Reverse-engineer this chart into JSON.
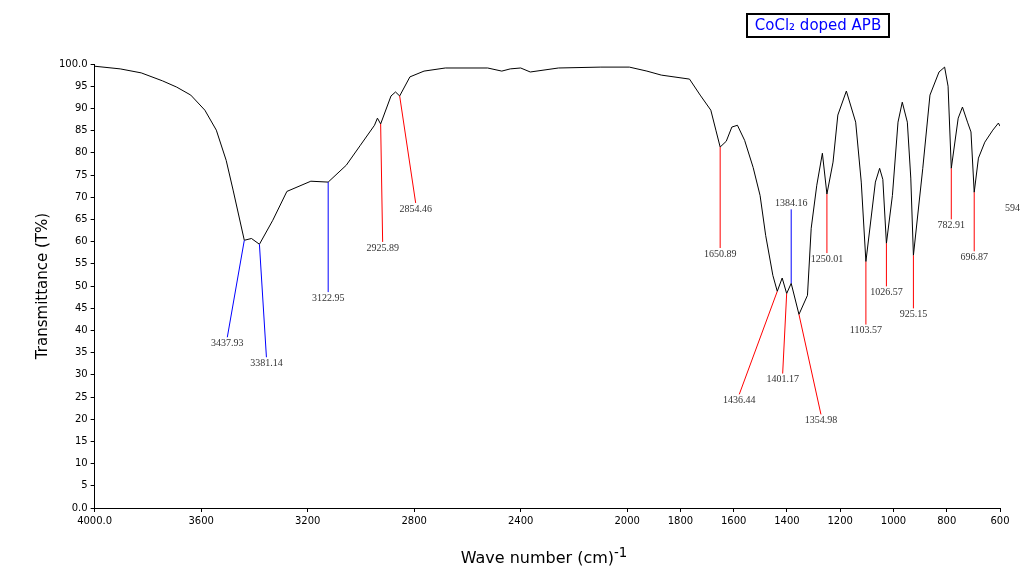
{
  "chart_data": {
    "type": "line",
    "title": "CoCl₂ doped APB",
    "xlabel": "Wave number (cm)$^{-1}$",
    "ylabel": "Transmittance (T%)",
    "x": [
      4000,
      3904,
      3825,
      3745,
      3692,
      3639,
      3586,
      3543,
      3506,
      3480,
      3437.93,
      3411,
      3381.14,
      3331,
      3278,
      3188,
      3122.95,
      3055,
      3002,
      2949,
      2938,
      2925.89,
      2887,
      2870,
      2854.46,
      2816,
      2763,
      2683,
      2524,
      2471,
      2439,
      2400,
      2364,
      2258,
      2099,
      1992,
      1926,
      1872,
      1766,
      1726,
      1686,
      1667,
      1650.89,
      1628,
      1607,
      1586,
      1559,
      1527,
      1501,
      1480,
      1453,
      1436.44,
      1418,
      1401.17,
      1384.16,
      1354.98,
      1323,
      1309,
      1288,
      1267,
      1250.01,
      1227,
      1209,
      1177,
      1142,
      1121,
      1103.57,
      1068,
      1052,
      1040,
      1026.57,
      1004,
      983,
      967,
      948,
      935,
      925.15,
      890,
      863,
      829,
      808,
      795,
      782.91,
      757,
      741,
      722,
      709,
      696.87,
      681,
      657,
      627,
      606,
      600
    ],
    "series": [
      {
        "color": "#000000",
        "values": [
          99.5,
          98.9,
          98.0,
          96.2,
          94.8,
          93.0,
          89.6,
          85.1,
          78.3,
          71.6,
          60.3,
          60.7,
          59.4,
          64.8,
          71.3,
          73.6,
          73.4,
          77.2,
          81.7,
          86.2,
          87.8,
          86.5,
          92.8,
          93.7,
          92.8,
          97.1,
          98.4,
          99.1,
          99.1,
          98.4,
          98.9,
          99.1,
          98.2,
          99.1,
          99.3,
          99.3,
          98.4,
          97.5,
          96.6,
          93.0,
          89.6,
          85.1,
          81.3,
          82.6,
          85.8,
          86.2,
          82.8,
          76.7,
          70.4,
          61.4,
          52.4,
          48.8,
          51.8,
          48.3,
          50.6,
          43.6,
          47.9,
          63.0,
          72.7,
          79.9,
          70.7,
          77.9,
          88.5,
          93.9,
          86.9,
          73.4,
          55.5,
          73.4,
          76.5,
          74.0,
          59.6,
          70.4,
          86.9,
          91.4,
          86.9,
          74.3,
          56.9,
          76.5,
          93.0,
          98.2,
          99.3,
          95.0,
          76.5,
          87.8,
          90.3,
          86.9,
          84.7,
          71.1,
          78.8,
          82.4,
          85.1,
          86.7,
          86.0
        ]
      }
    ],
    "xlim": [
      4000,
      600
    ],
    "xticks": [
      {
        "value": 4000,
        "label": "4000.0"
      },
      3600,
      3200,
      2800,
      2400,
      2000,
      1800,
      1600,
      1400,
      1200,
      1000,
      800,
      600
    ],
    "ylim": [
      0,
      100
    ],
    "yticks": [
      {
        "value": 0,
        "label": "0.0"
      },
      5,
      10,
      15,
      20,
      25,
      30,
      35,
      40,
      45,
      50,
      55,
      60,
      65,
      70,
      75,
      80,
      85,
      90,
      95,
      {
        "value": 100,
        "label": "100.0"
      }
    ],
    "grid": false,
    "legend": false,
    "marker": "none",
    "line_style": "solid",
    "annotations": [
      {
        "text": "3437.93",
        "x": 3437.93,
        "y": 60.3
      },
      {
        "text": "3381.14",
        "x": 3381.14,
        "y": 59.4
      },
      {
        "text": "3122.95",
        "x": 3122.95,
        "y": 73.4
      },
      {
        "text": "2925.89",
        "x": 2925.89,
        "y": 86.5
      },
      {
        "text": "2854.46",
        "x": 2854.46,
        "y": 92.8
      },
      {
        "text": "1650.89",
        "x": 1650.89,
        "y": 81.3
      },
      {
        "text": "1436.44",
        "x": 1436.44,
        "y": 48.8
      },
      {
        "text": "1401.17",
        "x": 1401.17,
        "y": 48.3
      },
      {
        "text": "1384.16",
        "x": 1384.16,
        "y": 50.6
      },
      {
        "text": "1354.98",
        "x": 1354.98,
        "y": 43.6
      },
      {
        "text": "1250.01",
        "x": 1250.01,
        "y": 70.7
      },
      {
        "text": "1103.57",
        "x": 1103.57,
        "y": 55.5
      },
      {
        "text": "1026.57",
        "x": 1026.57,
        "y": 59.6
      },
      {
        "text": "925.15",
        "x": 925.15,
        "y": 56.9
      },
      {
        "text": "782.91",
        "x": 782.91,
        "y": 76.5
      },
      {
        "text": "696.87",
        "x": 696.87,
        "y": 71.1
      },
      "594"
    ]
  }
}
